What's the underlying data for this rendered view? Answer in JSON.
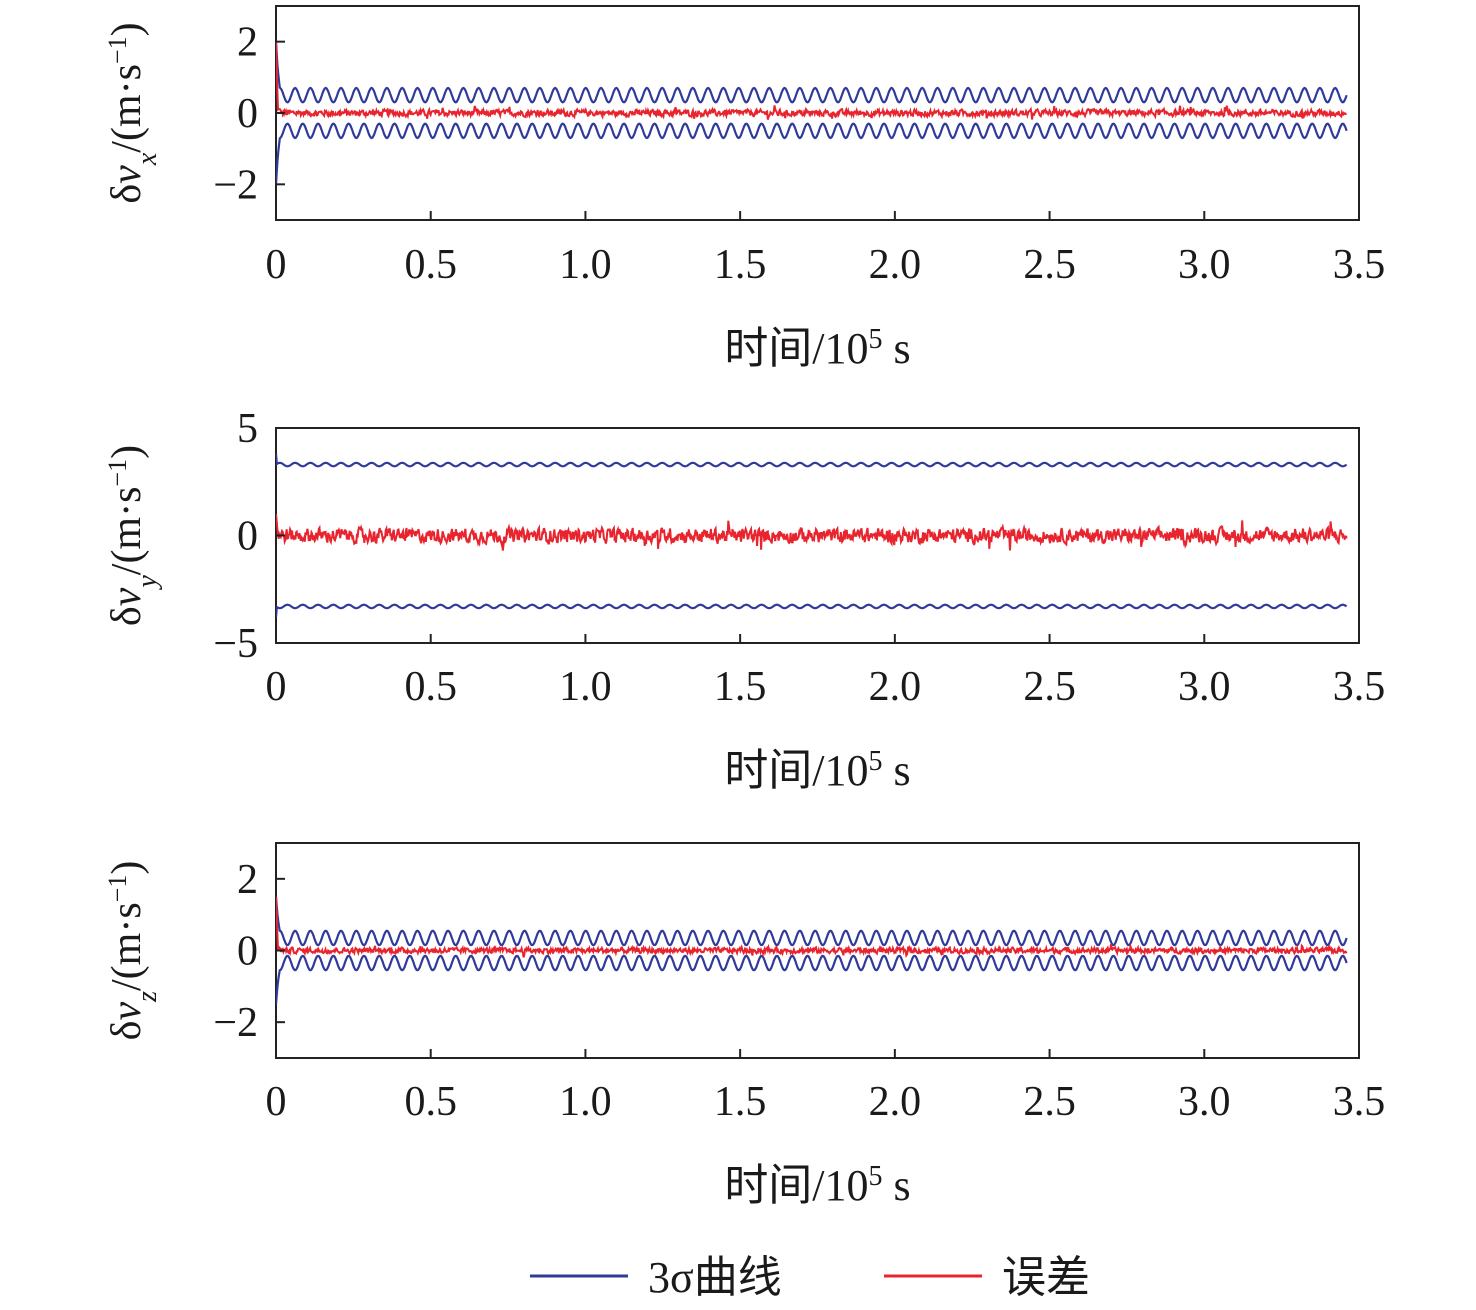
{
  "chart_data": [
    {
      "type": "line",
      "ylabel": "δvx/(m·s−1)",
      "ylabel_parts": {
        "delta": "δ",
        "v": "v",
        "sub": "x",
        "unit_open": "/(m·s",
        "sup": "−1",
        "unit_close": ")"
      },
      "xlabel": "时间/105 s",
      "xlabel_parts": {
        "main": "时间/10",
        "sup": "5",
        "unit": " s"
      },
      "xlim": [
        0,
        3.5
      ],
      "ylim": [
        -3,
        3
      ],
      "xticks": [
        0,
        0.5,
        1.0,
        1.5,
        2.0,
        2.5,
        3.0,
        3.5
      ],
      "xtick_labels": [
        "0",
        "0.5",
        "1.0",
        "1.5",
        "2.0",
        "2.5",
        "3.0",
        "3.5"
      ],
      "yticks": [
        -2,
        0,
        2
      ],
      "ytick_labels": [
        "−2",
        "0",
        "2"
      ],
      "series": [
        {
          "legend_ref": "3sigma",
          "kind": "envelope",
          "initial_peak": 2.0,
          "mean": 0.5,
          "oscillation_amplitude": 0.2,
          "oscillation_cycles": 70,
          "x_end": 3.46,
          "color": "#2f3a9b"
        },
        {
          "legend_ref": "error",
          "kind": "noise",
          "initial_peak": 2.0,
          "noise_amplitude": 0.12,
          "x_end": 3.46,
          "color": "#e8242e"
        }
      ]
    },
    {
      "type": "line",
      "ylabel": "δvy/(m·s−1)",
      "ylabel_parts": {
        "delta": "δ",
        "v": "v",
        "sub": "y",
        "unit_open": "/(m·s",
        "sup": "−1",
        "unit_close": ")"
      },
      "xlabel": "时间/105 s",
      "xlabel_parts": {
        "main": "时间/10",
        "sup": "5",
        "unit": " s"
      },
      "xlim": [
        0,
        3.5
      ],
      "ylim": [
        -5,
        5
      ],
      "xticks": [
        0,
        0.5,
        1.0,
        1.5,
        2.0,
        2.5,
        3.0,
        3.5
      ],
      "xtick_labels": [
        "0",
        "0.5",
        "1.0",
        "1.5",
        "2.0",
        "2.5",
        "3.0",
        "3.5"
      ],
      "yticks": [
        -5,
        0,
        5
      ],
      "ytick_labels": [
        "−5",
        "0",
        "5"
      ],
      "series": [
        {
          "legend_ref": "3sigma",
          "kind": "envelope",
          "initial_peak": 3.8,
          "mean": 3.3,
          "oscillation_amplitude": 0.08,
          "oscillation_cycles": 70,
          "x_end": 3.46,
          "color": "#2f3a9b"
        },
        {
          "legend_ref": "error",
          "kind": "noise",
          "initial_peak": 1.0,
          "noise_amplitude": 0.45,
          "x_end": 3.46,
          "color": "#e8242e"
        }
      ]
    },
    {
      "type": "line",
      "ylabel": "δvz/(m·s−1)",
      "ylabel_parts": {
        "delta": "δ",
        "v": "v",
        "sub": "z",
        "unit_open": "/(m·s",
        "sup": "−1",
        "unit_close": ")"
      },
      "xlabel": "时间/105 s",
      "xlabel_parts": {
        "main": "时间/10",
        "sup": "5",
        "unit": " s"
      },
      "xlim": [
        0,
        3.5
      ],
      "ylim": [
        -3,
        3
      ],
      "xticks": [
        0,
        0.5,
        1.0,
        1.5,
        2.0,
        2.5,
        3.0,
        3.5
      ],
      "xtick_labels": [
        "0",
        "0.5",
        "1.0",
        "1.5",
        "2.0",
        "2.5",
        "3.0",
        "3.5"
      ],
      "yticks": [
        -2,
        0,
        2
      ],
      "ytick_labels": [
        "−2",
        "0",
        "2"
      ],
      "series": [
        {
          "legend_ref": "3sigma",
          "kind": "envelope",
          "initial_peak": 1.5,
          "mean": 0.35,
          "oscillation_amplitude": 0.2,
          "oscillation_cycles": 70,
          "x_end": 3.46,
          "color": "#2f3a9b"
        },
        {
          "legend_ref": "error",
          "kind": "noise",
          "initial_peak": 1.5,
          "noise_amplitude": 0.1,
          "x_end": 3.46,
          "color": "#e8242e"
        }
      ]
    }
  ],
  "legend": {
    "placement": "bottom-center",
    "entries": [
      {
        "id": "3sigma",
        "label": "3σ曲线",
        "color": "#2f3a9b"
      },
      {
        "id": "error",
        "label": "误差",
        "color": "#e8242e"
      }
    ]
  }
}
